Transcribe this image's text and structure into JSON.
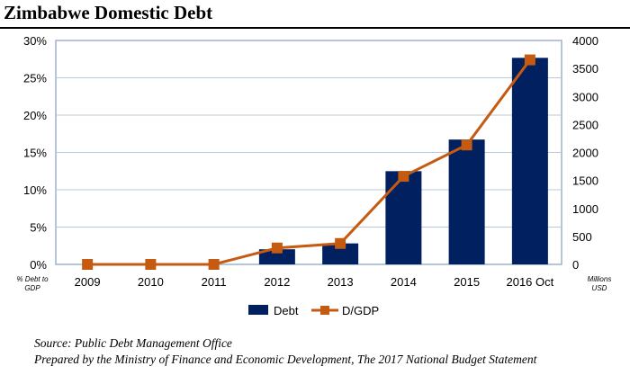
{
  "title": "Zimbabwe Domestic Debt",
  "source_lines": [
    "Source: Public Debt Management Office",
    "Prepared by the Ministry of Finance and Economic Development, The 2017 National Budget Statement"
  ],
  "chart_data": {
    "type": "bar+line",
    "title": "Zimbabwe Domestic Debt",
    "categories": [
      "2009",
      "2010",
      "2011",
      "2012",
      "2013",
      "2014",
      "2015",
      "2016 Oct"
    ],
    "series": [
      {
        "name": "Debt",
        "type": "bar",
        "axis": "right",
        "color": "#002060",
        "values": [
          0,
          0,
          0,
          270,
          375,
          1665,
          2230,
          3690
        ]
      },
      {
        "name": "D/GDP",
        "type": "line",
        "axis": "left",
        "color": "#C55A11",
        "values": [
          0,
          0,
          0,
          2.2,
          2.8,
          11.8,
          16.0,
          27.4
        ]
      }
    ],
    "left_axis": {
      "label": [
        "% Debt to",
        "GDP"
      ],
      "range": [
        0,
        30
      ],
      "ticks": [
        "0%",
        "5%",
        "10%",
        "15%",
        "20%",
        "25%",
        "30%"
      ]
    },
    "right_axis": {
      "label": [
        "Millions",
        "USD"
      ],
      "range": [
        0,
        4000
      ],
      "ticks": [
        "0",
        "500",
        "1000",
        "1500",
        "2000",
        "2500",
        "3000",
        "3500",
        "4000"
      ]
    },
    "grid": true,
    "legend_placement": "bottom"
  }
}
